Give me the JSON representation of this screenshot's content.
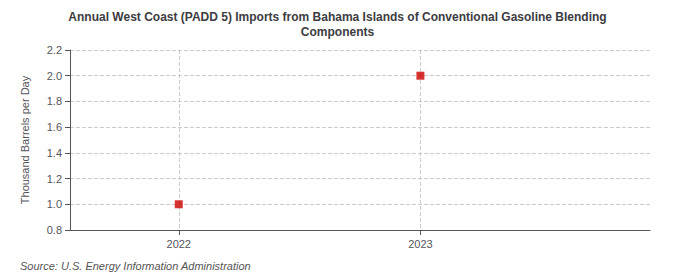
{
  "chart_data": {
    "type": "scatter",
    "title": "Annual West Coast (PADD 5) Imports from Bahama Islands of Conventional Gasoline Blending\nComponents",
    "ylabel": "Thousand Barrels per Day",
    "annotations": [
      "Source: U.S. Energy Information Administration"
    ],
    "x": [
      2022,
      2023
    ],
    "values": [
      1.0,
      2.0
    ],
    "color": "#cc0000",
    "marker": "square",
    "xlim": [
      2021.55,
      2023.95
    ],
    "xticks": [
      2022,
      2023
    ],
    "ylim": [
      0.8,
      2.2
    ],
    "yticks": [
      0.8,
      {
        "value": 1.0,
        "label": "1.0"
      },
      1.2,
      1.4,
      1.6,
      1.8,
      {
        "value": 2.0,
        "label": "2.0"
      },
      2.2
    ],
    "grid": true
  }
}
